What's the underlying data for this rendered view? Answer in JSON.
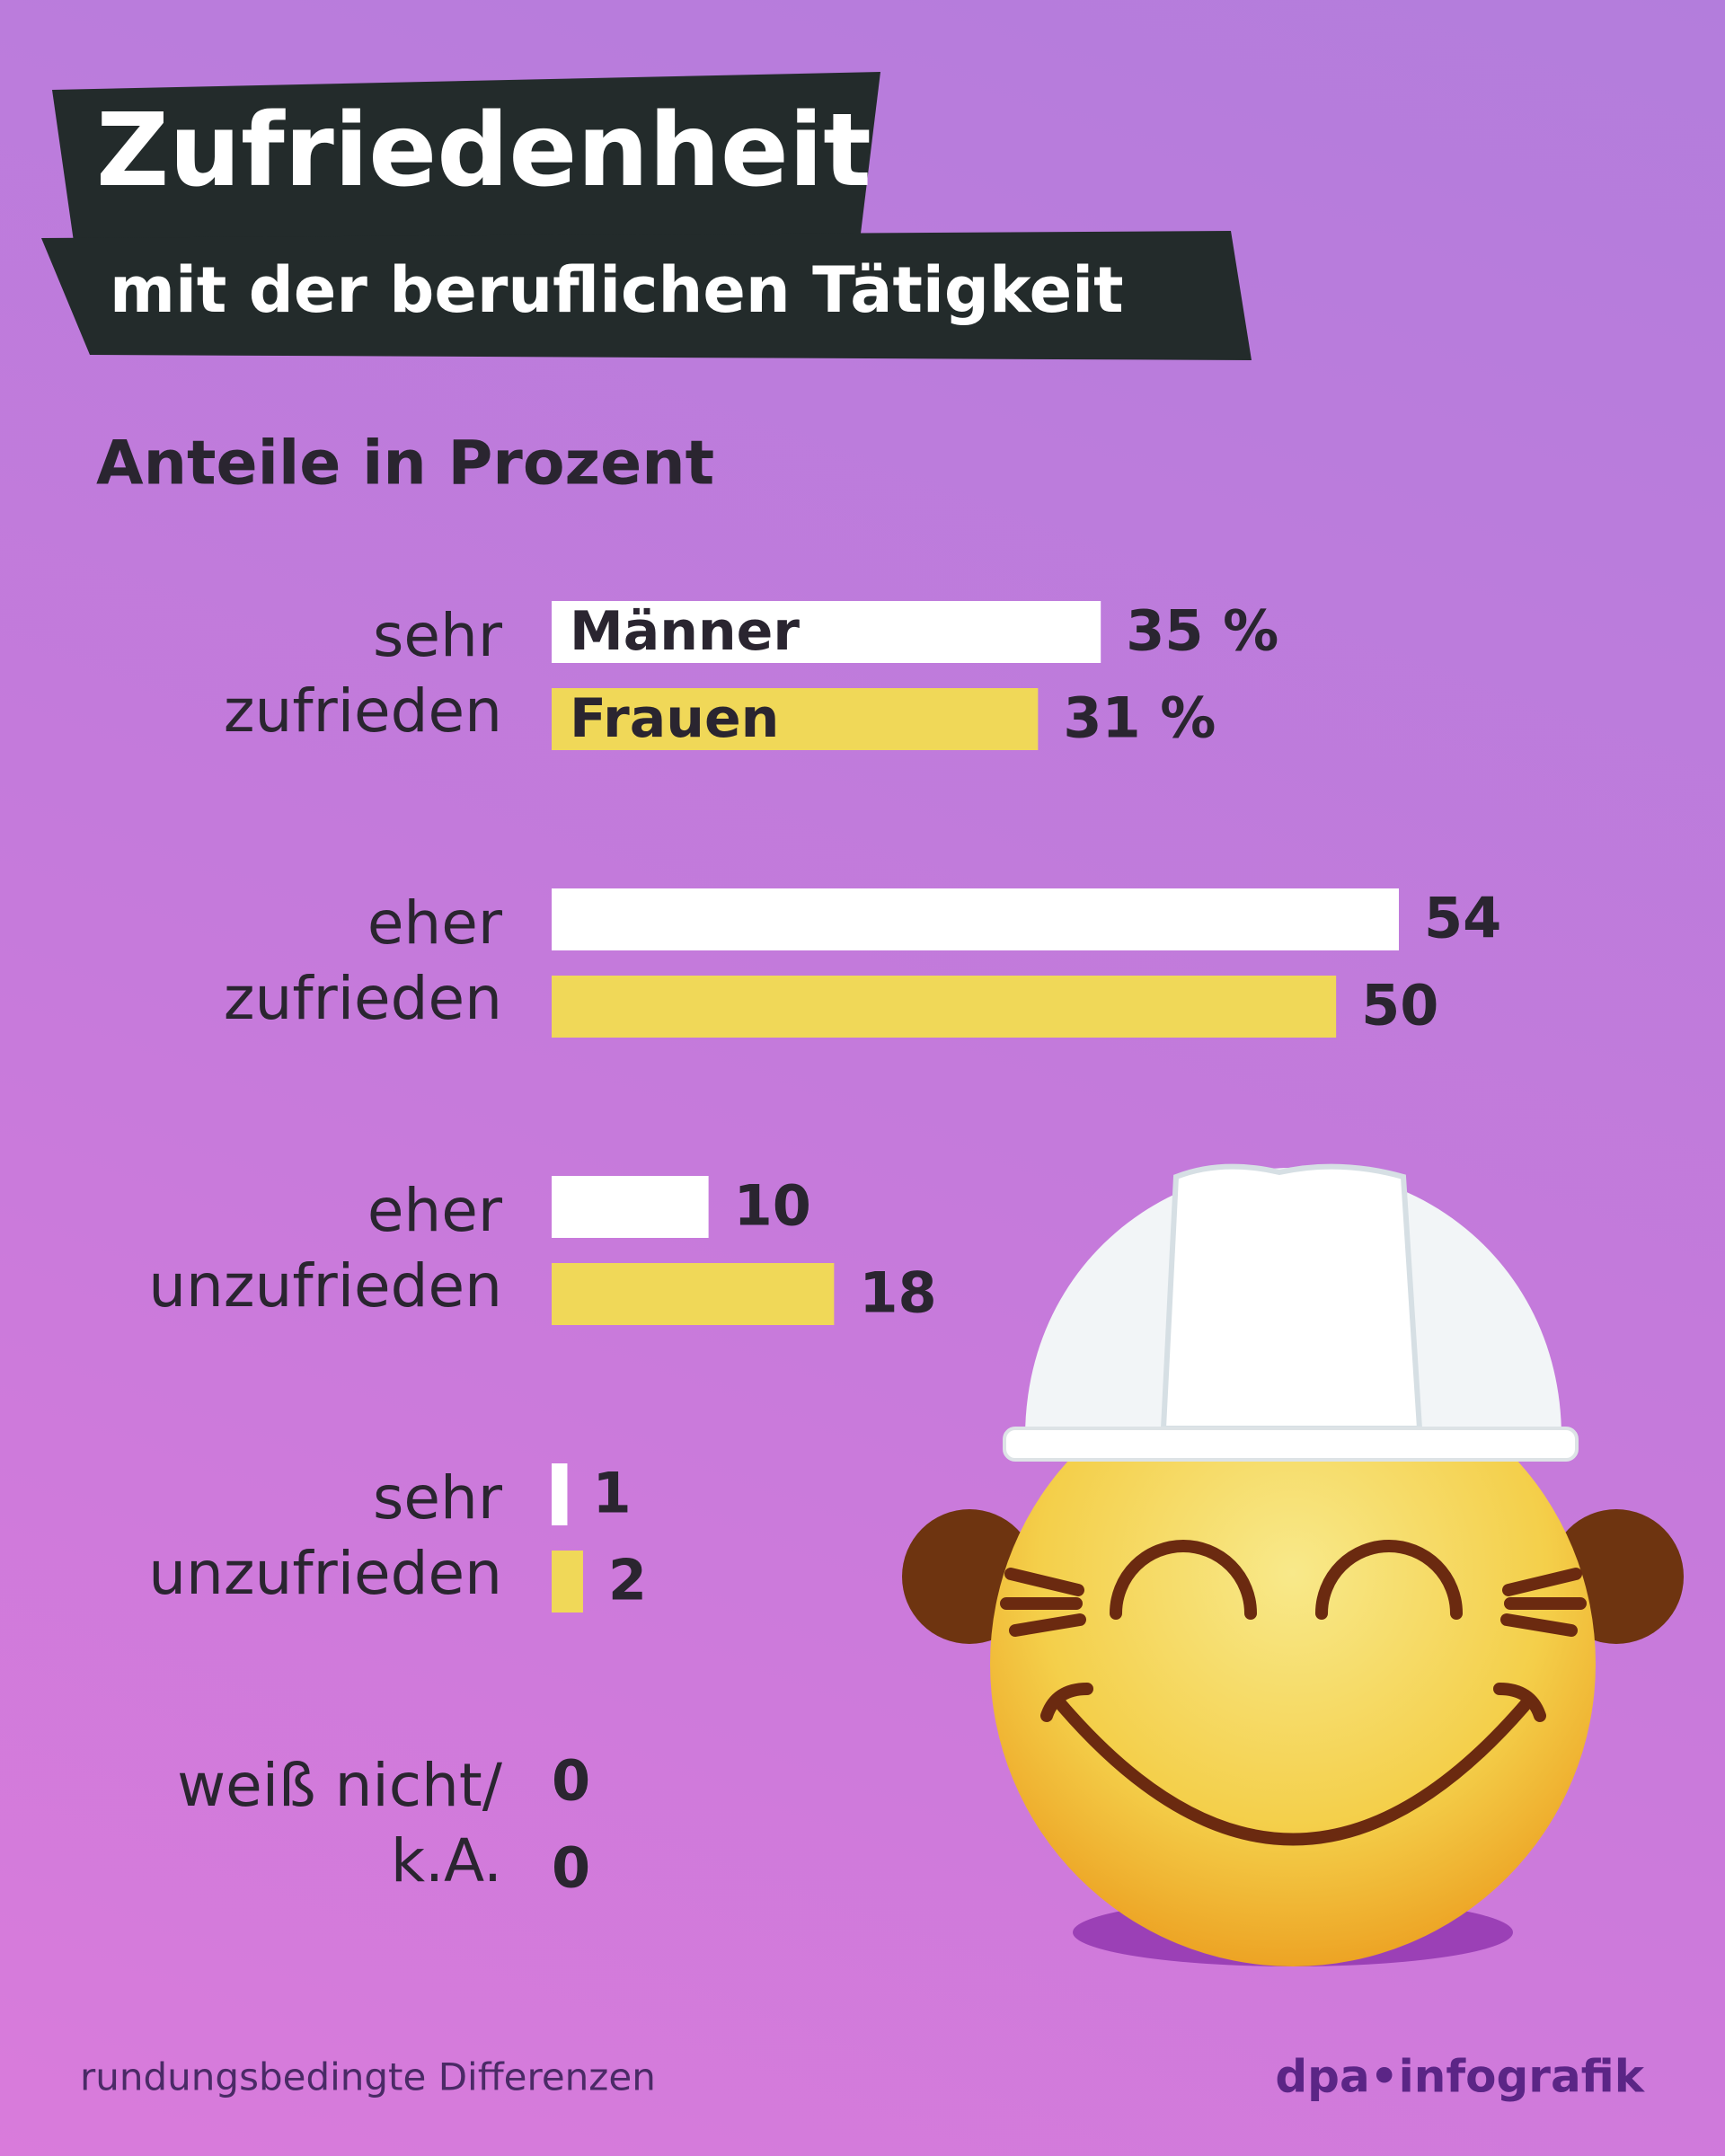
{
  "chart_data": {
    "type": "bar",
    "title": "Zufriedenheit",
    "subtitle": "mit der beruflichen Tätigkeit",
    "unit_note": "Anteile in Prozent",
    "categories": [
      "sehr\nzufrieden",
      "eher\nzufrieden",
      "eher\nunzufrieden",
      "sehr\nunzufrieden",
      "weiß nicht/\nk.A."
    ],
    "series": [
      {
        "name": "Männer",
        "color": "#ffffff",
        "values": [
          35,
          54,
          10,
          1,
          0
        ],
        "value_labels": [
          "35 %",
          "54",
          "10",
          "1",
          "0"
        ]
      },
      {
        "name": "Frauen",
        "color": "#f0d858",
        "values": [
          31,
          50,
          18,
          2,
          0
        ],
        "value_labels": [
          "31 %",
          "50",
          "18",
          "2",
          "0"
        ]
      }
    ],
    "footnote": "rundungsbedingte Differenzen",
    "source": "dpa•infografik"
  }
}
